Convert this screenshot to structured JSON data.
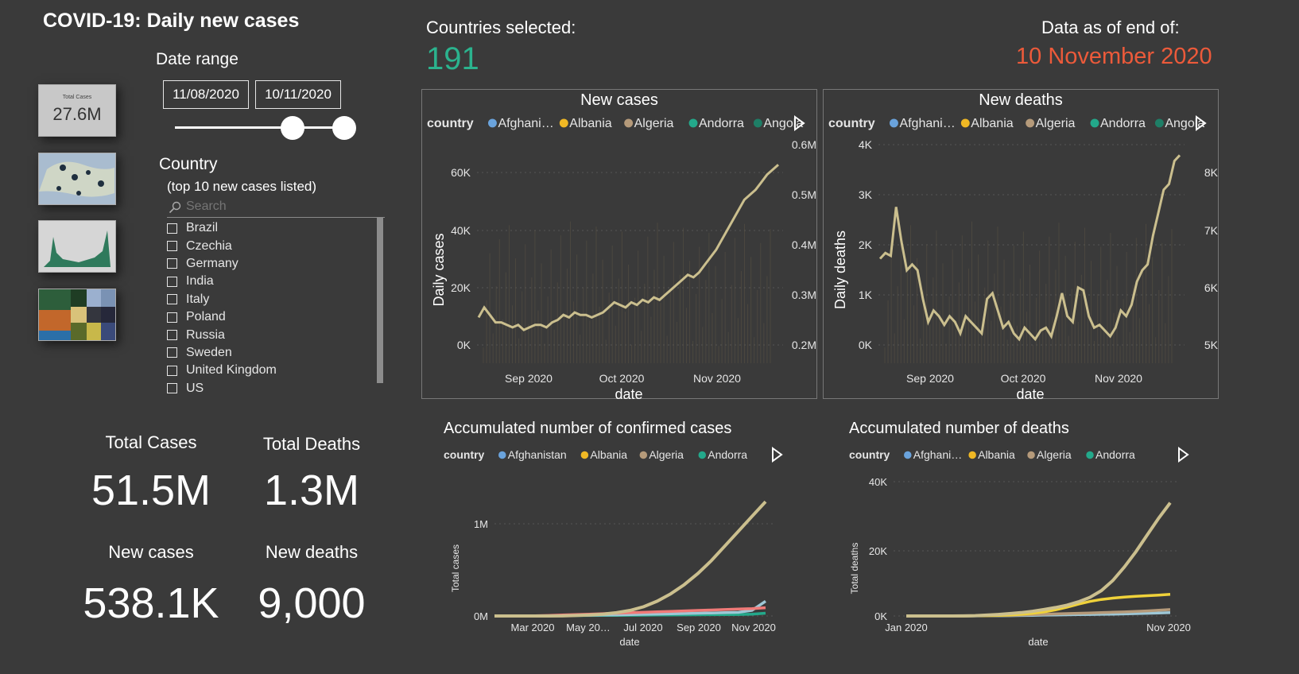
{
  "header": {
    "title": "COVID-19: Daily new cases",
    "countries_selected_label": "Countries selected:",
    "countries_selected_value": "191",
    "data_asof_label": "Data as of end of:",
    "data_asof_value": "10 November 2020",
    "accent_green": "#2bb38e",
    "accent_orange": "#ec5a3a"
  },
  "thumbnails": {
    "total_cases_label": "Total Cases",
    "total_cases_value": "27.6M"
  },
  "date_range": {
    "label": "Date range",
    "start": "11/08/2020",
    "end": "10/11/2020"
  },
  "country_filter": {
    "label": "Country",
    "sublabel": "(top 10 new cases listed)",
    "search_placeholder": "Search",
    "items": [
      "Brazil",
      "Czechia",
      "Germany",
      "India",
      "Italy",
      "Poland",
      "Russia",
      "Sweden",
      "United Kingdom",
      "US"
    ]
  },
  "kpis": {
    "total_cases_label": "Total Cases",
    "total_cases_value": "51.5M",
    "total_deaths_label": "Total Deaths",
    "total_deaths_value": "1.3M",
    "new_cases_label": "New cases",
    "new_cases_value": "538.1K",
    "new_deaths_label": "New deaths",
    "new_deaths_value": "9,000"
  },
  "chart_data": [
    {
      "type": "line",
      "title": "New cases",
      "legend_title": "country",
      "legend": [
        {
          "name": "Afghani…",
          "color": "#6aa3dc"
        },
        {
          "name": "Albania",
          "color": "#f0b824"
        },
        {
          "name": "Algeria",
          "color": "#b59a7a"
        },
        {
          "name": "Andorra",
          "color": "#23a98b"
        },
        {
          "name": "Angola",
          "color": "#1e7e66"
        }
      ],
      "xlabel": "date",
      "ylabel": "Daily cases",
      "x_ticks": [
        "Sep 2020",
        "Oct 2020",
        "Nov 2020"
      ],
      "y_ticks": [
        "0K",
        "20K",
        "40K",
        "60K"
      ],
      "y2_ticks": [
        "0.2M",
        "0.3M",
        "0.4M",
        "0.5M",
        "0.6M"
      ],
      "ylim": [
        0,
        60000
      ],
      "y2lim": [
        200000,
        600000
      ],
      "line_color": "#cbbf8e",
      "series_y2": [
        0.255,
        0.275,
        0.26,
        0.245,
        0.245,
        0.24,
        0.235,
        0.24,
        0.23,
        0.235,
        0.24,
        0.24,
        0.235,
        0.245,
        0.25,
        0.26,
        0.255,
        0.265,
        0.26,
        0.26,
        0.255,
        0.26,
        0.265,
        0.275,
        0.285,
        0.28,
        0.275,
        0.285,
        0.28,
        0.29,
        0.285,
        0.295,
        0.29,
        0.3,
        0.31,
        0.32,
        0.33,
        0.34,
        0.335,
        0.345,
        0.36,
        0.375,
        0.39,
        0.41,
        0.43,
        0.45,
        0.47,
        0.49,
        0.5,
        0.51,
        0.525,
        0.54,
        0.55,
        0.56
      ]
    },
    {
      "type": "line",
      "title": "New deaths",
      "legend_title": "country",
      "legend": [
        {
          "name": "Afghani…",
          "color": "#6aa3dc"
        },
        {
          "name": "Albania",
          "color": "#f0b824"
        },
        {
          "name": "Algeria",
          "color": "#b59a7a"
        },
        {
          "name": "Andorra",
          "color": "#23a98b"
        },
        {
          "name": "Angola",
          "color": "#1e7e66"
        }
      ],
      "xlabel": "date",
      "ylabel": "Daily deaths",
      "x_ticks": [
        "Sep 2020",
        "Oct 2020",
        "Nov 2020"
      ],
      "y_ticks": [
        "0K",
        "1K",
        "2K",
        "3K",
        "4K"
      ],
      "y2_ticks": [
        "5K",
        "6K",
        "7K",
        "8K"
      ],
      "ylim": [
        0,
        4000
      ],
      "y2lim": [
        5000,
        8500
      ],
      "line_color": "#cbbf8e",
      "series_y2": [
        6.5,
        6.6,
        6.55,
        7.4,
        6.8,
        6.3,
        6.4,
        6.3,
        5.8,
        5.4,
        5.6,
        5.5,
        5.35,
        5.5,
        5.4,
        5.2,
        5.5,
        5.4,
        5.3,
        5.2,
        5.8,
        5.9,
        5.6,
        5.3,
        5.4,
        5.2,
        5.1,
        5.3,
        5.2,
        5.1,
        5.25,
        5.3,
        5.15,
        5.5,
        5.9,
        5.5,
        5.4,
        6.0,
        5.95,
        5.5,
        5.3,
        5.35,
        5.25,
        5.15,
        5.3,
        5.6,
        5.5,
        5.7,
        6.1,
        6.3,
        6.4,
        6.9,
        7.3,
        7.7,
        7.8,
        8.2,
        8.3
      ]
    },
    {
      "type": "line",
      "title": "Accumulated number of confirmed cases",
      "legend_title": "country",
      "legend": [
        {
          "name": "Afghanistan",
          "color": "#6aa3dc"
        },
        {
          "name": "Albania",
          "color": "#f0b824"
        },
        {
          "name": "Algeria",
          "color": "#b59a7a"
        },
        {
          "name": "Andorra",
          "color": "#23a98b"
        }
      ],
      "xlabel": "date",
      "ylabel": "Total cases",
      "x_ticks": [
        "Mar 2020",
        "May 20…",
        "Jul 2020",
        "Sep 2020",
        "Nov 2020"
      ],
      "y_ticks": [
        "0M",
        "1M"
      ],
      "ylim": [
        0,
        1250000
      ],
      "series": [
        {
          "color": "#cbbf8e",
          "values": [
            0,
            0,
            0,
            0,
            0,
            0.001,
            0.005,
            0.01,
            0.02,
            0.035,
            0.06,
            0.1,
            0.16,
            0.24,
            0.34,
            0.46,
            0.6,
            0.76,
            0.92,
            1.08,
            1.24
          ]
        },
        {
          "color": "#f07a78",
          "values": [
            0,
            0,
            0,
            0.002,
            0.005,
            0.01,
            0.015,
            0.02,
            0.025,
            0.03,
            0.035,
            0.04,
            0.045,
            0.05,
            0.055,
            0.06,
            0.065,
            0.07,
            0.075,
            0.08,
            0.09
          ]
        },
        {
          "color": "#9ec7d6",
          "values": [
            0,
            0,
            0,
            0.001,
            0.002,
            0.004,
            0.006,
            0.008,
            0.01,
            0.012,
            0.015,
            0.018,
            0.021,
            0.024,
            0.027,
            0.03,
            0.033,
            0.036,
            0.04,
            0.06,
            0.16
          ]
        },
        {
          "color": "#23a98b",
          "values": [
            0,
            0,
            0,
            0.001,
            0.002,
            0.003,
            0.004,
            0.005,
            0.006,
            0.007,
            0.008,
            0.009,
            0.01,
            0.011,
            0.012,
            0.013,
            0.014,
            0.015,
            0.016,
            0.02,
            0.03
          ]
        }
      ]
    },
    {
      "type": "line",
      "title": "Accumulated number of deaths",
      "legend_title": "country",
      "legend": [
        {
          "name": "Afghani…",
          "color": "#6aa3dc"
        },
        {
          "name": "Albania",
          "color": "#f0b824"
        },
        {
          "name": "Algeria",
          "color": "#b59a7a"
        },
        {
          "name": "Andorra",
          "color": "#23a98b"
        }
      ],
      "xlabel": "date",
      "ylabel": "Total deaths",
      "x_ticks": [
        "Jan 2020",
        "Nov 2020"
      ],
      "y_ticks": [
        "0K",
        "20K",
        "40K"
      ],
      "ylim": [
        0,
        40000
      ],
      "series": [
        {
          "color": "#cbbf8e",
          "values": [
            0,
            0,
            0,
            0,
            0,
            0.02,
            0.1,
            0.25,
            0.45,
            0.7,
            1.0,
            1.4,
            1.9,
            2.5,
            3.2,
            4.2,
            5.5,
            7.5,
            10.5,
            14.5,
            19,
            24,
            29,
            33.5
          ]
        },
        {
          "color": "#f0d23a",
          "values": [
            0,
            0,
            0,
            0,
            0,
            0,
            0.05,
            0.1,
            0.2,
            0.3,
            0.5,
            0.8,
            1.2,
            1.8,
            2.6,
            3.5,
            4.3,
            4.9,
            5.3,
            5.6,
            5.8,
            6.0,
            6.2,
            6.4
          ]
        },
        {
          "color": "#b59a7a",
          "values": [
            0,
            0,
            0,
            0,
            0,
            0,
            0.05,
            0.1,
            0.15,
            0.2,
            0.3,
            0.4,
            0.5,
            0.6,
            0.7,
            0.8,
            0.9,
            1.0,
            1.1,
            1.2,
            1.35,
            1.5,
            1.7,
            1.9
          ]
        },
        {
          "color": "#9ec7d6",
          "values": [
            0,
            0,
            0,
            0,
            0,
            0,
            0.02,
            0.05,
            0.08,
            0.1,
            0.15,
            0.2,
            0.25,
            0.3,
            0.35,
            0.4,
            0.45,
            0.5,
            0.55,
            0.6,
            0.7,
            0.8,
            0.9,
            1.0
          ]
        }
      ]
    }
  ]
}
